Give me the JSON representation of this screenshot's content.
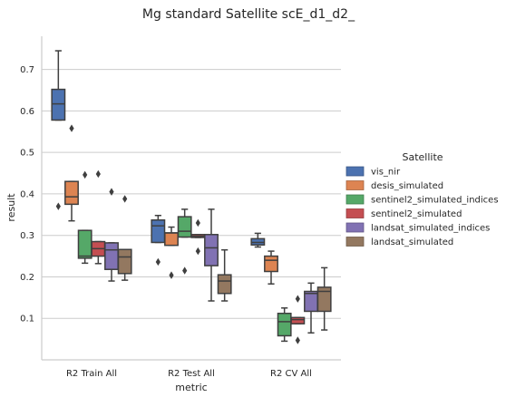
{
  "chart_data": {
    "type": "box",
    "title": "Mg standard Satellite scE_d1_d2_",
    "xlabel": "metric",
    "ylabel": "result",
    "categories": [
      "R2 Train All",
      "R2 Test All",
      "R2 CV All"
    ],
    "yticks": [
      0.1,
      0.2,
      0.3,
      0.4,
      0.5,
      0.6,
      0.7
    ],
    "ylim": [
      0.0,
      0.78
    ],
    "grid": "horizontal",
    "legend_title": "Satellite",
    "legend_position": "right",
    "series": [
      {
        "name": "vis_nir",
        "color": "#4c72b0",
        "boxes": [
          {
            "whislo": 0.578,
            "q1": 0.578,
            "med": 0.617,
            "q3": 0.652,
            "whishi": 0.745,
            "fliers": [
              0.37
            ]
          },
          {
            "whislo": 0.283,
            "q1": 0.283,
            "med": 0.323,
            "q3": 0.337,
            "whishi": 0.348,
            "fliers": [
              0.236
            ]
          },
          {
            "whislo": 0.272,
            "q1": 0.277,
            "med": 0.283,
            "q3": 0.292,
            "whishi": 0.305,
            "fliers": []
          }
        ]
      },
      {
        "name": "desis_simulated",
        "color": "#dd8452",
        "boxes": [
          {
            "whislo": 0.335,
            "q1": 0.375,
            "med": 0.393,
            "q3": 0.43,
            "whishi": 0.43,
            "fliers": [
              0.558
            ]
          },
          {
            "whislo": 0.276,
            "q1": 0.276,
            "med": 0.306,
            "q3": 0.306,
            "whishi": 0.32,
            "fliers": [
              0.204
            ]
          },
          {
            "whislo": 0.183,
            "q1": 0.213,
            "med": 0.24,
            "q3": 0.25,
            "whishi": 0.262,
            "fliers": []
          }
        ]
      },
      {
        "name": "sentinel2_simulated_indices",
        "color": "#55a868",
        "boxes": [
          {
            "whislo": 0.233,
            "q1": 0.245,
            "med": 0.25,
            "q3": 0.312,
            "whishi": 0.312,
            "fliers": [
              0.446
            ]
          },
          {
            "whislo": 0.296,
            "q1": 0.296,
            "med": 0.31,
            "q3": 0.345,
            "whishi": 0.363,
            "fliers": [
              0.215
            ]
          },
          {
            "whislo": 0.045,
            "q1": 0.058,
            "med": 0.092,
            "q3": 0.112,
            "whishi": 0.125,
            "fliers": []
          }
        ]
      },
      {
        "name": "sentinel2_simulated",
        "color": "#c44e52",
        "boxes": [
          {
            "whislo": 0.232,
            "q1": 0.25,
            "med": 0.268,
            "q3": 0.285,
            "whishi": 0.285,
            "fliers": [
              0.448
            ]
          },
          {
            "whislo": 0.295,
            "q1": 0.295,
            "med": 0.298,
            "q3": 0.302,
            "whishi": 0.302,
            "fliers": [
              0.33,
              0.262
            ]
          },
          {
            "whislo": 0.087,
            "q1": 0.087,
            "med": 0.097,
            "q3": 0.102,
            "whishi": 0.102,
            "fliers": [
              0.147,
              0.047
            ]
          }
        ]
      },
      {
        "name": "landsat_simulated_indices",
        "color": "#8172b3",
        "boxes": [
          {
            "whislo": 0.19,
            "q1": 0.218,
            "med": 0.265,
            "q3": 0.282,
            "whishi": 0.282,
            "fliers": [
              0.405
            ]
          },
          {
            "whislo": 0.142,
            "q1": 0.227,
            "med": 0.27,
            "q3": 0.302,
            "whishi": 0.363,
            "fliers": []
          },
          {
            "whislo": 0.065,
            "q1": 0.117,
            "med": 0.16,
            "q3": 0.165,
            "whishi": 0.185,
            "fliers": []
          }
        ]
      },
      {
        "name": "landsat_simulated",
        "color": "#937860",
        "boxes": [
          {
            "whislo": 0.192,
            "q1": 0.208,
            "med": 0.248,
            "q3": 0.266,
            "whishi": 0.266,
            "fliers": [
              0.388
            ]
          },
          {
            "whislo": 0.142,
            "q1": 0.16,
            "med": 0.19,
            "q3": 0.205,
            "whishi": 0.265,
            "fliers": []
          },
          {
            "whislo": 0.072,
            "q1": 0.117,
            "med": 0.165,
            "q3": 0.175,
            "whishi": 0.222,
            "fliers": []
          }
        ]
      }
    ]
  }
}
